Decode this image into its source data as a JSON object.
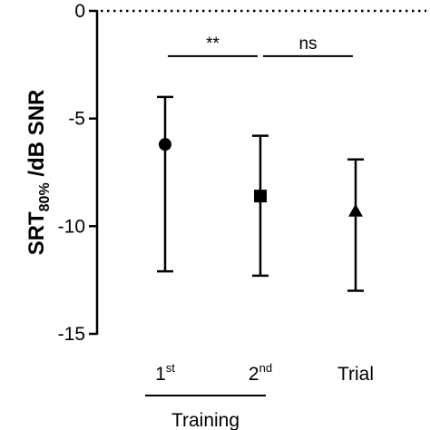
{
  "chart_data": {
    "type": "scatter",
    "ylabel_main": "SRT",
    "ylabel_sub": "80%",
    "ylabel_rest": " /dB SNR",
    "ylim": [
      -15,
      0
    ],
    "yticks": [
      0,
      -5,
      -10,
      -15
    ],
    "ytick_labels": [
      "0",
      "-5",
      "-10",
      "-15"
    ],
    "categories": [
      {
        "base": "1",
        "sup": "st"
      },
      {
        "base": "2",
        "sup": "nd"
      },
      {
        "base": "Trial",
        "sup": ""
      }
    ],
    "points": [
      {
        "mean": -6.2,
        "upper": -4.0,
        "lower": -12.1,
        "marker": "circle"
      },
      {
        "mean": -8.6,
        "upper": -5.8,
        "lower": -12.3,
        "marker": "square"
      },
      {
        "mean": -9.3,
        "upper": -6.9,
        "lower": -13.0,
        "marker": "triangle"
      }
    ],
    "reference_line": {
      "y": 0,
      "style": "dotted"
    },
    "significance": [
      {
        "from": 0,
        "to": 1,
        "label": "**",
        "y": -2.1
      },
      {
        "from": 1,
        "to": 2,
        "label": "ns",
        "y": -2.1
      }
    ],
    "group_bracket": {
      "from": 0,
      "to": 1,
      "label": "Training"
    }
  }
}
